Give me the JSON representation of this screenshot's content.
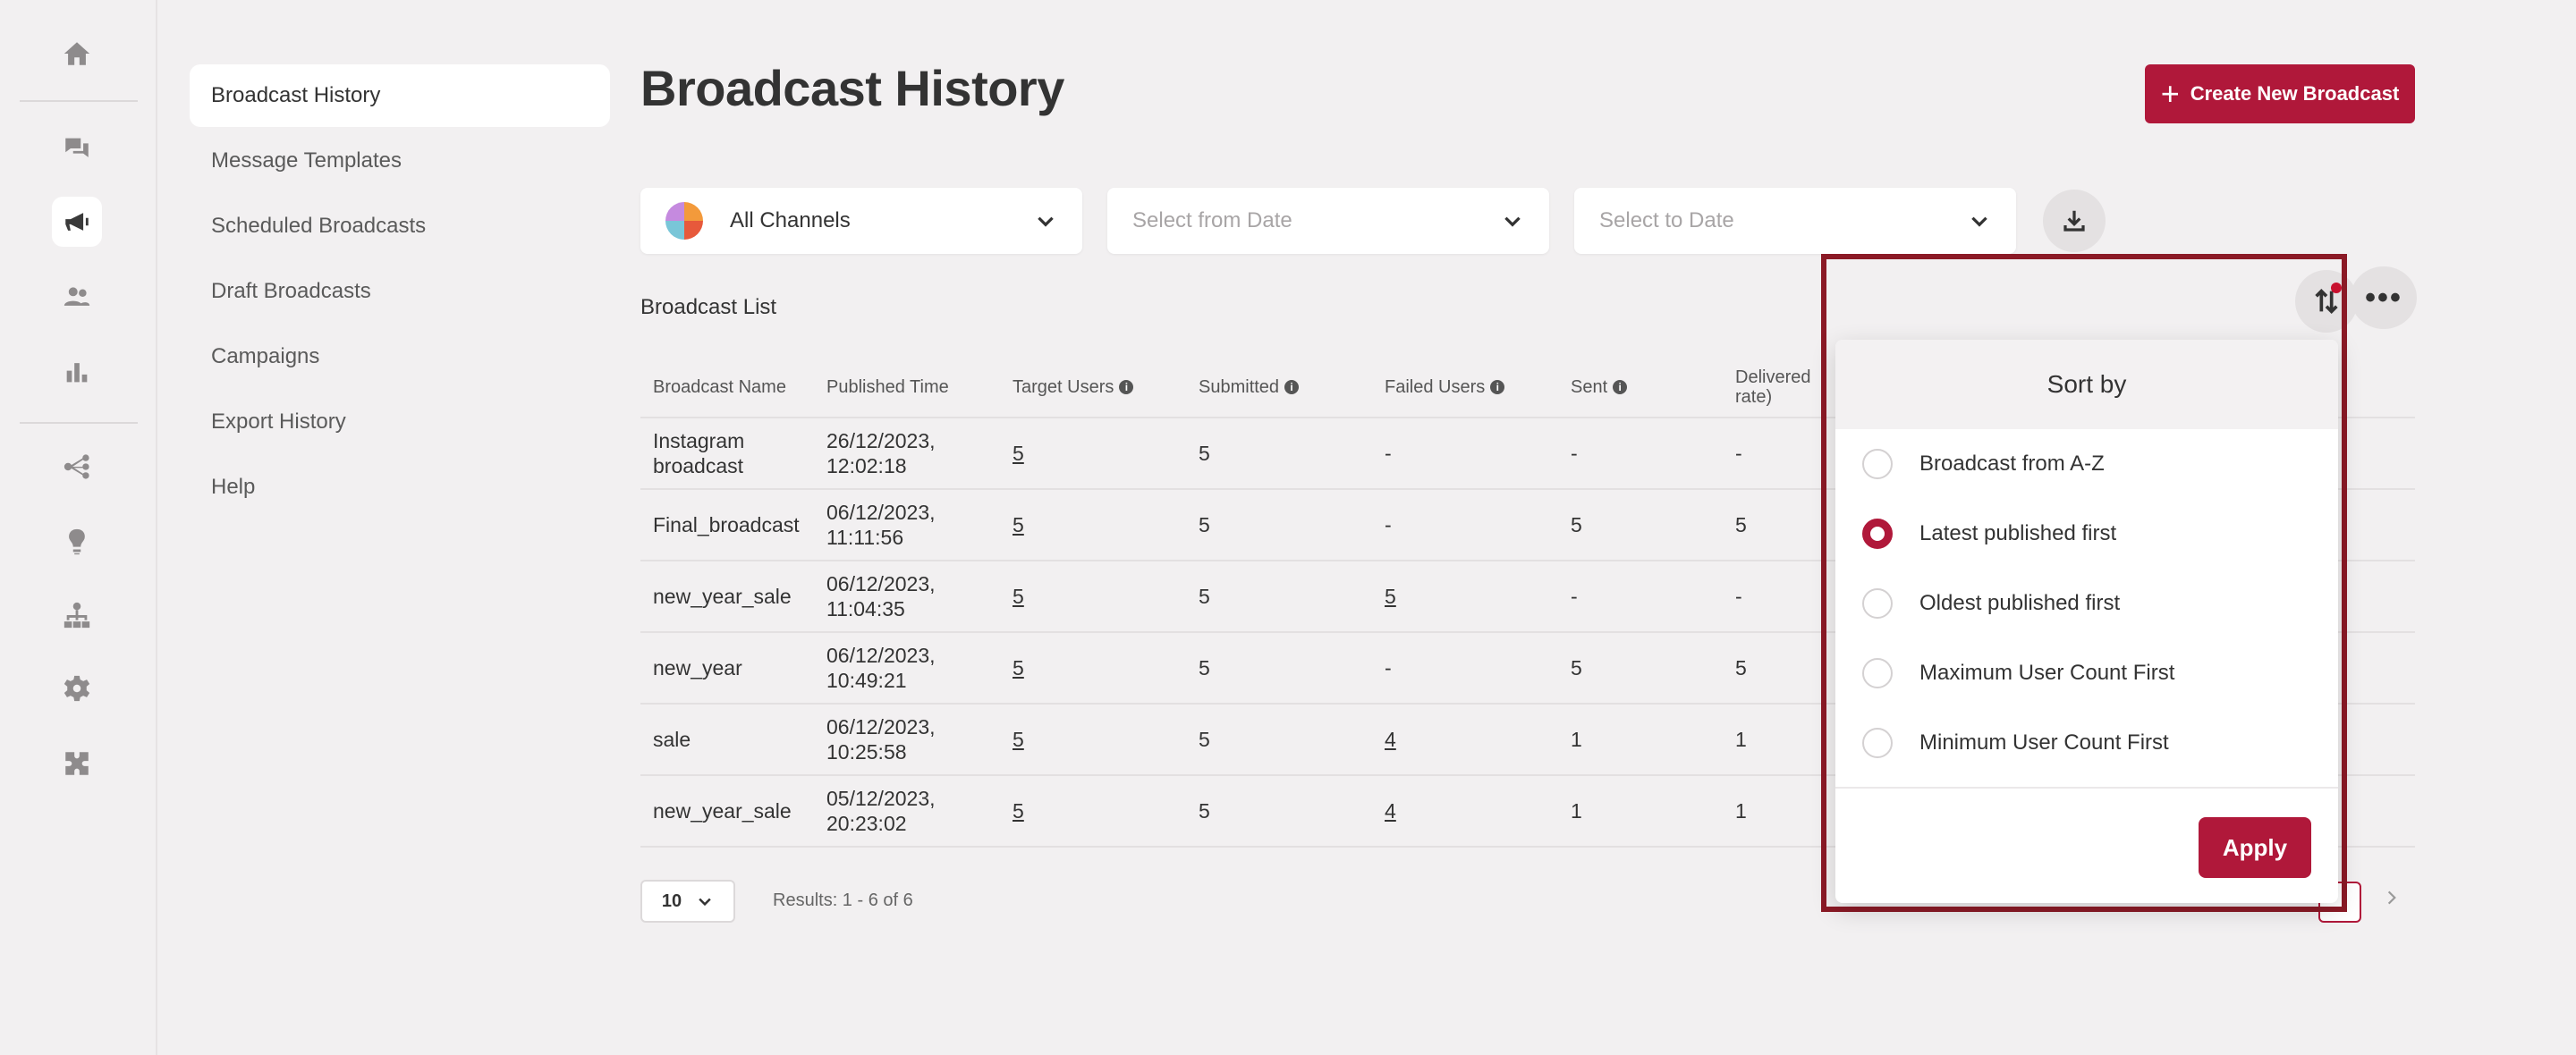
{
  "rail": {
    "icons": [
      "home-icon",
      "chat-icon",
      "megaphone-icon",
      "users-icon",
      "chart-icon",
      "flow-icon",
      "bulb-icon",
      "hierarchy-icon",
      "gear-icon",
      "puzzle-icon"
    ],
    "active": "megaphone-icon"
  },
  "subnav": {
    "items": [
      {
        "label": "Broadcast History",
        "active": true
      },
      {
        "label": "Message Templates"
      },
      {
        "label": "Scheduled Broadcasts"
      },
      {
        "label": "Draft Broadcasts"
      },
      {
        "label": "Campaigns"
      },
      {
        "label": "Export History"
      },
      {
        "label": "Help"
      }
    ]
  },
  "header": {
    "title": "Broadcast History",
    "create_label": "Create New Broadcast"
  },
  "filters": {
    "channel": "All Channels",
    "from_date_placeholder": "Select from Date",
    "to_date_placeholder": "Select to Date"
  },
  "list": {
    "title": "Broadcast List",
    "columns": [
      "Broadcast Name",
      "Published Time",
      "Target Users",
      "Submitted",
      "Failed Users",
      "Sent",
      "Delivered rate)"
    ],
    "rows": [
      {
        "name": [
          "Instagram",
          "broadcast"
        ],
        "time": [
          "26/12/2023,",
          "12:02:18"
        ],
        "target": "5",
        "submitted": "5",
        "failed": "-",
        "sent": "-",
        "delivered": "-"
      },
      {
        "name": [
          "Final_broadcast"
        ],
        "time": [
          "06/12/2023,",
          "11:11:56"
        ],
        "target": "5",
        "submitted": "5",
        "failed": "-",
        "sent": "5",
        "delivered": "5"
      },
      {
        "name": [
          "new_year_sale"
        ],
        "time": [
          "06/12/2023,",
          "11:04:35"
        ],
        "target": "5",
        "submitted": "5",
        "failed": "5",
        "sent": "-",
        "delivered": "-"
      },
      {
        "name": [
          "new_year"
        ],
        "time": [
          "06/12/2023,",
          "10:49:21"
        ],
        "target": "5",
        "submitted": "5",
        "failed": "-",
        "sent": "5",
        "delivered": "5"
      },
      {
        "name": [
          "sale"
        ],
        "time": [
          "06/12/2023,",
          "10:25:58"
        ],
        "target": "5",
        "submitted": "5",
        "failed": "4",
        "sent": "1",
        "delivered": "1"
      },
      {
        "name": [
          "new_year_sale"
        ],
        "time": [
          "05/12/2023,",
          "20:23:02"
        ],
        "target": "5",
        "submitted": "5",
        "failed": "4",
        "sent": "1",
        "delivered": "1"
      }
    ]
  },
  "footer": {
    "page_size": "10",
    "results": "Results: 1 - 6 of 6"
  },
  "sort_popover": {
    "title": "Sort by",
    "options": [
      {
        "label": "Broadcast from A-Z",
        "checked": false
      },
      {
        "label": "Latest published first",
        "checked": true
      },
      {
        "label": "Oldest published first",
        "checked": false
      },
      {
        "label": "Maximum User Count First",
        "checked": false
      },
      {
        "label": "Minimum User Count First",
        "checked": false
      }
    ],
    "apply_label": "Apply"
  },
  "colors": {
    "accent": "#b0183a",
    "highlight_border": "#8b1a26"
  }
}
